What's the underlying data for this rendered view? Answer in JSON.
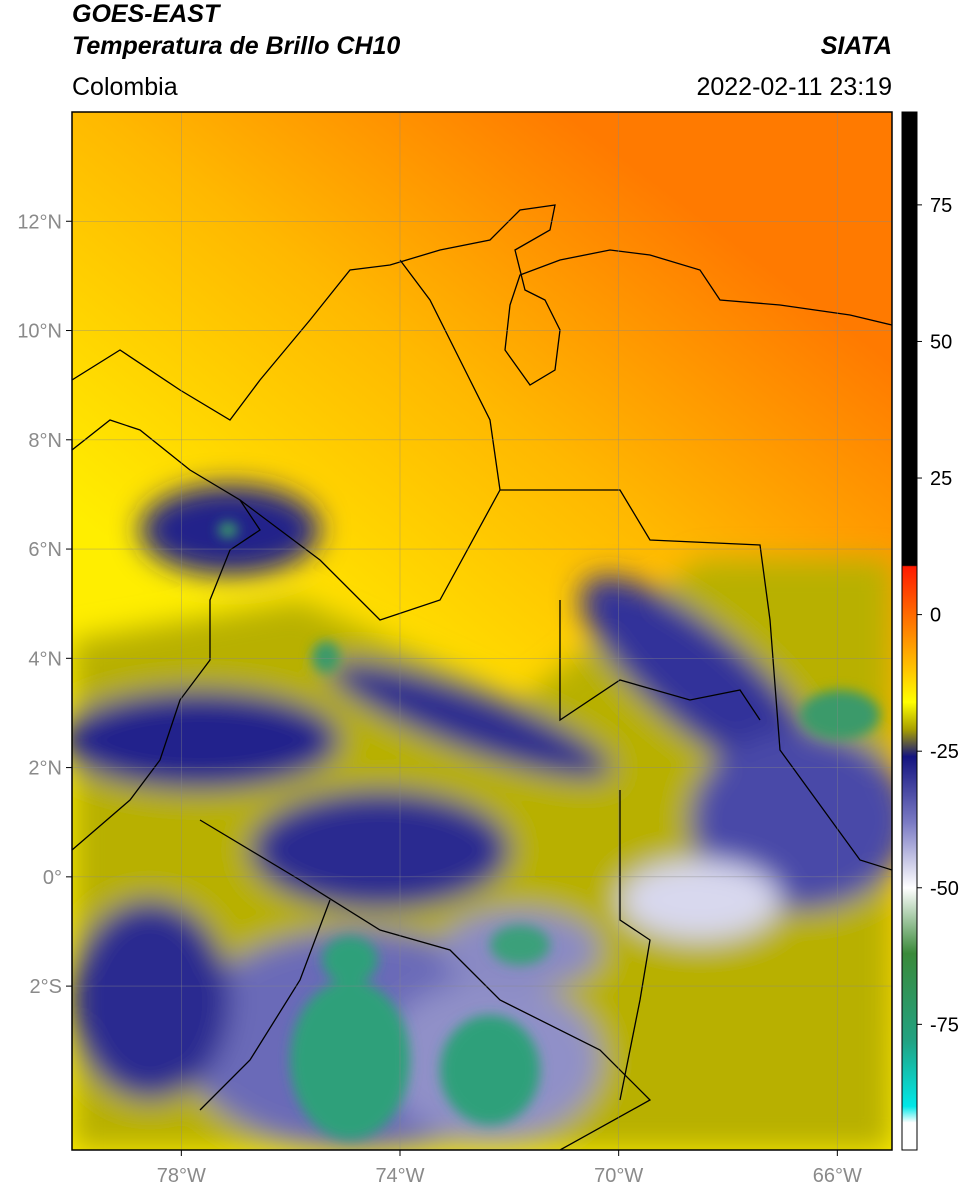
{
  "header": {
    "title": "GOES-EAST",
    "subtitle": "Temperatura de Brillo CH10",
    "source": "SIATA",
    "region": "Colombia",
    "datetime": "2022-02-11 23:19"
  },
  "map": {
    "xlim": [
      -80,
      -65
    ],
    "ylim": [
      -5,
      14
    ],
    "grid": true,
    "xticks": [
      {
        "value": -78,
        "label": "78°W"
      },
      {
        "value": -74,
        "label": "74°W"
      },
      {
        "value": -70,
        "label": "70°W"
      },
      {
        "value": -66,
        "label": "66°W"
      }
    ],
    "yticks": [
      {
        "value": 12,
        "label": "12°N"
      },
      {
        "value": 10,
        "label": "10°N"
      },
      {
        "value": 8,
        "label": "8°N"
      },
      {
        "value": 6,
        "label": "6°N"
      },
      {
        "value": 4,
        "label": "4°N"
      },
      {
        "value": 2,
        "label": "2°N"
      },
      {
        "value": 0,
        "label": "0°"
      },
      {
        "value": -2,
        "label": "2°S"
      }
    ]
  },
  "colorbar": {
    "lim": [
      -98,
      92
    ],
    "ticks": [
      75,
      50,
      25,
      0,
      -25,
      -50,
      -75
    ],
    "stops": [
      {
        "value": 92,
        "color": "#000000"
      },
      {
        "value": 9,
        "color": "#000000"
      },
      {
        "value": 8.8,
        "color": "#ff1a00"
      },
      {
        "value": 0,
        "color": "#ff6a00"
      },
      {
        "value": -10,
        "color": "#ffc400"
      },
      {
        "value": -16,
        "color": "#ffff00"
      },
      {
        "value": -21,
        "color": "#a8a000"
      },
      {
        "value": -26,
        "color": "#141480"
      },
      {
        "value": -38,
        "color": "#7a7ac4"
      },
      {
        "value": -50,
        "color": "#ffffff"
      },
      {
        "value": -62,
        "color": "#3a8a3a"
      },
      {
        "value": -78,
        "color": "#22a282"
      },
      {
        "value": -90,
        "color": "#00e8e8"
      },
      {
        "value": -93,
        "color": "#ffffff"
      },
      {
        "value": -98,
        "color": "#ffffff"
      }
    ]
  }
}
